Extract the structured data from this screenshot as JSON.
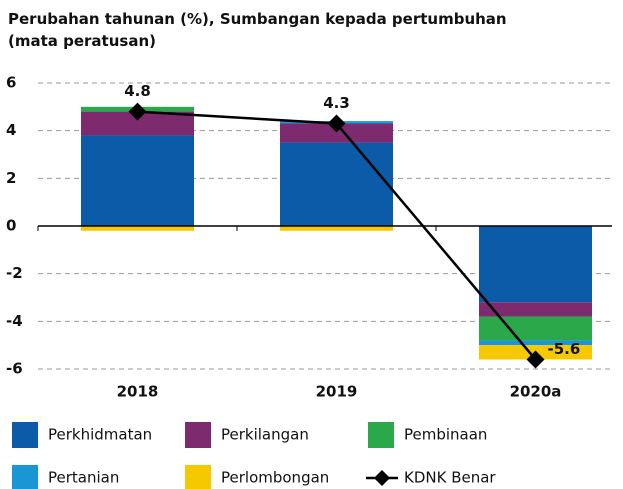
{
  "chart_data": {
    "type": "bar",
    "stacked": true,
    "title": "Perubahan tahunan (%), Sumbangan kepada pertumbuhan (mata peratusan)",
    "categories": [
      "2018",
      "2019",
      "2020a"
    ],
    "series": [
      {
        "name": "Perkhidmatan",
        "color": "#0b5ba8",
        "values": [
          3.8,
          3.5,
          -3.2
        ]
      },
      {
        "name": "Perkilangan",
        "color": "#7d2a6e",
        "values": [
          1.0,
          0.8,
          -0.6
        ]
      },
      {
        "name": "Pembinaan",
        "color": "#2aa84a",
        "values": [
          0.2,
          0.0,
          -1.0
        ]
      },
      {
        "name": "Pertanian",
        "color": "#1a96d4",
        "values": [
          0.0,
          0.1,
          -0.2
        ]
      },
      {
        "name": "Perlombongan",
        "color": "#f5c800",
        "values": [
          -0.2,
          -0.2,
          -0.6
        ]
      }
    ],
    "line": {
      "name": "KDNK Benar",
      "color": "#000000",
      "values": [
        4.8,
        4.3,
        -5.6
      ]
    },
    "ylim": [
      -6,
      6
    ],
    "yticks": [
      -6,
      -4,
      -2,
      0,
      2,
      4,
      6
    ],
    "grid": true
  }
}
